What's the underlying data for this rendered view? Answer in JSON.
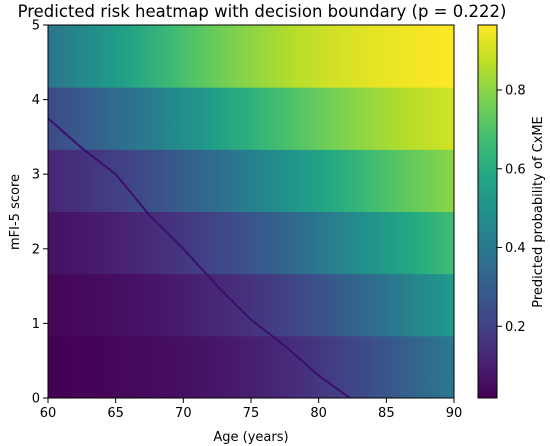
{
  "chart_data": {
    "type": "heatmap",
    "title": "Predicted risk heatmap with decision boundary (p = 0.222)",
    "xlabel": "Age (years)",
    "ylabel": "mFI-5 score",
    "colorbar_label": "Predicted probability of CxME",
    "xlim": [
      60,
      90
    ],
    "ylim": [
      0,
      5
    ],
    "x_ticks": [
      "60",
      "65",
      "70",
      "75",
      "80",
      "85",
      "90"
    ],
    "x_tick_values": [
      60,
      65,
      70,
      75,
      80,
      85,
      90
    ],
    "y_ticks": [
      "0",
      "1",
      "2",
      "3",
      "4",
      "5"
    ],
    "y_tick_values": [
      0,
      1,
      2,
      3,
      4,
      5
    ],
    "colorbar_range": [
      0.018,
      0.965
    ],
    "colorbar_ticks": [
      "0.2",
      "0.4",
      "0.6",
      "0.8"
    ],
    "colorbar_tick_values": [
      0.2,
      0.4,
      0.6,
      0.8
    ],
    "colormap": "viridis",
    "decision_threshold": 0.222,
    "row_bands": [
      {
        "y_range": [
          0,
          0.833
        ],
        "p_at_age_60": 0.018,
        "p_at_age_90": 0.4
      },
      {
        "y_range": [
          0.833,
          1.667
        ],
        "p_at_age_60": 0.03,
        "p_at_age_90": 0.53
      },
      {
        "y_range": [
          1.667,
          2.5
        ],
        "p_at_age_60": 0.06,
        "p_at_age_90": 0.67
      },
      {
        "y_range": [
          2.5,
          3.333
        ],
        "p_at_age_60": 0.12,
        "p_at_age_90": 0.8
      },
      {
        "y_range": [
          3.333,
          4.167
        ],
        "p_at_age_60": 0.23,
        "p_at_age_90": 0.9
      },
      {
        "y_range": [
          4.167,
          5
        ],
        "p_at_age_60": 0.38,
        "p_at_age_90": 0.965
      }
    ],
    "boundary_line": {
      "color": "#3b0f6f",
      "x": [
        60,
        62.5,
        65,
        67.5,
        70,
        72.5,
        75,
        77.5,
        80,
        82.3
      ],
      "y": [
        3.75,
        3.35,
        3.0,
        2.45,
        2.0,
        1.5,
        1.05,
        0.7,
        0.3,
        0.0
      ]
    }
  }
}
